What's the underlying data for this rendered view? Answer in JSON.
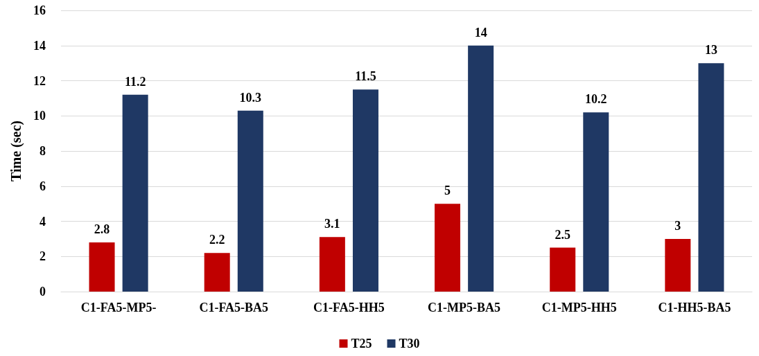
{
  "chart_data": {
    "type": "bar",
    "ylabel": "Time (sec)",
    "categories": [
      "C1-FA5-MP5-",
      "C1-FA5-BA5",
      "C1-FA5-HH5",
      "C1-MP5-BA5",
      "C1-MP5-HH5",
      "C1-HH5-BA5"
    ],
    "series": [
      {
        "name": "T25",
        "color": "#c00000",
        "values": [
          2.8,
          2.2,
          3.1,
          5,
          2.5,
          3
        ]
      },
      {
        "name": "T30",
        "color": "#1f3864",
        "values": [
          11.2,
          10.3,
          11.5,
          14,
          10.2,
          13
        ]
      }
    ],
    "ylim": [
      0,
      16
    ],
    "yticks": [
      0,
      2,
      4,
      6,
      8,
      10,
      12,
      14,
      16
    ],
    "grid": "y",
    "legend": "bottom",
    "data_labels": true
  }
}
